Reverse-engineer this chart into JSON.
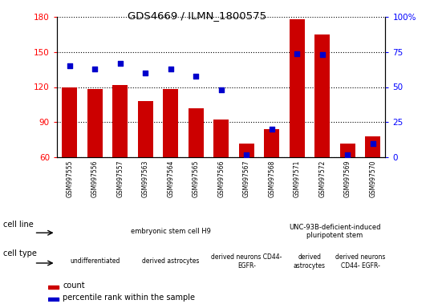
{
  "title": "GDS4669 / ILMN_1800575",
  "samples": [
    "GSM997555",
    "GSM997556",
    "GSM997557",
    "GSM997563",
    "GSM997564",
    "GSM997565",
    "GSM997566",
    "GSM997567",
    "GSM997568",
    "GSM997571",
    "GSM997572",
    "GSM997569",
    "GSM997570"
  ],
  "count_values": [
    120,
    118,
    122,
    108,
    118,
    102,
    92,
    72,
    84,
    178,
    165,
    72,
    78
  ],
  "percentile_values": [
    65,
    63,
    67,
    60,
    63,
    58,
    48,
    2,
    20,
    74,
    73,
    2,
    10
  ],
  "ylim_left": [
    60,
    180
  ],
  "ylim_right": [
    0,
    100
  ],
  "yticks_left": [
    60,
    90,
    120,
    150,
    180
  ],
  "yticks_right": [
    0,
    25,
    50,
    75,
    100
  ],
  "bar_color": "#cc0000",
  "dot_color": "#0000cc",
  "cell_line_groups": [
    {
      "label": "embryonic stem cell H9",
      "start": 0,
      "end": 9,
      "color": "#99ee99"
    },
    {
      "label": "UNC-93B-deficient-induced\npluripotent stem",
      "start": 9,
      "end": 13,
      "color": "#33cc33"
    }
  ],
  "cell_type_groups": [
    {
      "label": "undifferentiated",
      "start": 0,
      "end": 3,
      "color": "#ee99ee"
    },
    {
      "label": "derived astrocytes",
      "start": 3,
      "end": 6,
      "color": "#ee99ee"
    },
    {
      "label": "derived neurons CD44-\nEGFR-",
      "start": 6,
      "end": 9,
      "color": "#ee44ee"
    },
    {
      "label": "derived\nastrocytes",
      "start": 9,
      "end": 11,
      "color": "#ee44ee"
    },
    {
      "label": "derived neurons\nCD44- EGFR-",
      "start": 11,
      "end": 13,
      "color": "#ee44ee"
    }
  ],
  "bar_bottom": 60,
  "grid_style": "dotted",
  "background_color": "#ffffff",
  "tick_bg_color": "#cccccc",
  "left_color": "red",
  "right_color": "blue"
}
